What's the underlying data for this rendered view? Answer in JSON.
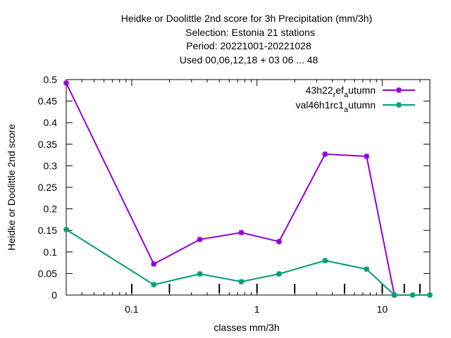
{
  "chart_data": {
    "type": "line",
    "title_lines": [
      "Heidke or Doolittle 2nd score  for 3h Precipitation (mm/3h)",
      "Selection: Estonia      21 stations",
      "Period: 20221001-20221028",
      "Used  00,06,12,18  + 03 06 ... 48"
    ],
    "xlabel": "classes mm/3h",
    "ylabel": "Heidke or Doolittle 2nd score",
    "x_scale": "log",
    "xlim": [
      0.03,
      24
    ],
    "ylim": [
      0,
      0.5
    ],
    "grid": false,
    "legend_position": "top-right",
    "y_ticks": [
      0,
      0.05,
      0.1,
      0.15,
      0.2,
      0.25,
      0.3,
      0.35,
      0.4,
      0.45,
      0.5
    ],
    "y_tick_labels": [
      "0",
      "0.05",
      "0.1",
      "0.15",
      "0.2",
      "0.25",
      "0.3",
      "0.35",
      "0.4",
      "0.45",
      "0.5"
    ],
    "x_major_ticks": [
      0.1,
      1,
      10
    ],
    "x_major_tick_labels": [
      "0.1",
      "1",
      "10"
    ],
    "x_class_ticks": [
      0.1,
      0.2,
      0.5,
      1,
      2,
      5,
      10,
      15,
      20
    ],
    "x": [
      0.03,
      0.15,
      0.35,
      0.75,
      1.5,
      3.5,
      7.5,
      12.5,
      17.5,
      24
    ],
    "series": [
      {
        "name_main": "43h22",
        "name_sub1": "r",
        "name_mid": "ef",
        "name_sub2": "a",
        "name_tail": "utumn",
        "color": "#9400d3",
        "values": [
          0.492,
          0.072,
          0.129,
          0.145,
          0.124,
          0.327,
          0.322,
          0.0,
          null,
          null
        ]
      },
      {
        "name_main": "val46h1rc1",
        "name_sub1": "",
        "name_mid": "",
        "name_sub2": "a",
        "name_tail": "utumn",
        "color": "#009e73",
        "values": [
          0.152,
          0.024,
          0.049,
          0.031,
          0.049,
          0.08,
          0.06,
          0.0,
          0.0,
          0.0
        ]
      }
    ]
  }
}
